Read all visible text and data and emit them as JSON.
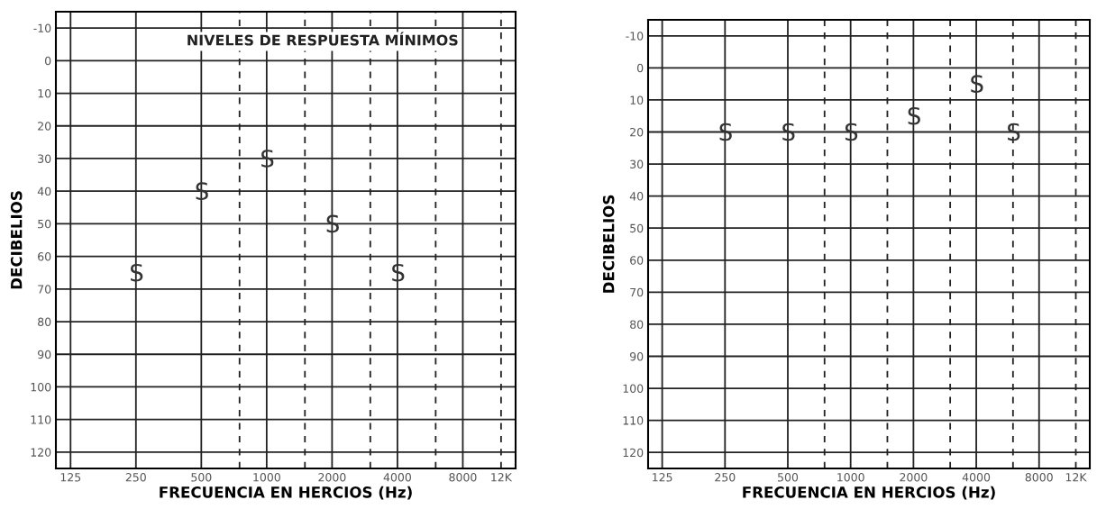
{
  "chart_data": [
    {
      "type": "scatter",
      "title": "NIVELES DE RESPUESTA MÍNIMOS",
      "xlabel": "FRECUENCIA EN HERCIOS (Hz)",
      "ylabel": "DECIBELIOS",
      "log": "x",
      "marker": "S",
      "grid": true,
      "x": [
        250,
        500,
        1000,
        2000,
        4000
      ],
      "series": [
        {
          "color": "#333333",
          "values": [
            65,
            40,
            30,
            50,
            65
          ]
        }
      ],
      "xlim": [
        107,
        14000
      ],
      "xticks": [
        125,
        250,
        500,
        1000,
        2000,
        4000,
        8000,
        {
          "value": 12000,
          "label": "12K"
        }
      ],
      "ylim": [
        125,
        -15
      ],
      "yticks": [
        -10,
        0,
        10,
        20,
        30,
        40,
        50,
        60,
        70,
        80,
        90,
        100,
        110,
        120
      ],
      "ref_lines": [
        {
          "axis": "x",
          "value": 750,
          "line_style": "dashed",
          "color": "#222222"
        },
        {
          "axis": "x",
          "value": 1500,
          "line_style": "dashed",
          "color": "#222222"
        },
        {
          "axis": "x",
          "value": 3000,
          "line_style": "dashed",
          "color": "#222222"
        },
        {
          "axis": "x",
          "value": 6000,
          "line_style": "dashed",
          "color": "#222222"
        },
        {
          "axis": "x",
          "value": 12000,
          "line_style": "dashed",
          "color": "#222222"
        }
      ]
    },
    {
      "type": "scatter",
      "xlabel": "FRECUENCIA EN HERCIOS (Hz)",
      "ylabel": "DECIBELIOS",
      "log": "x",
      "marker": "S",
      "grid": true,
      "x": [
        250,
        500,
        1000,
        2000,
        4000,
        6000
      ],
      "series": [
        {
          "color": "#333333",
          "values": [
            20,
            20,
            20,
            15,
            5,
            20
          ]
        }
      ],
      "xlim": [
        107,
        14000
      ],
      "xticks": [
        125,
        250,
        500,
        1000,
        2000,
        4000,
        8000,
        {
          "value": 12000,
          "label": "12K"
        }
      ],
      "ylim": [
        125,
        -15
      ],
      "yticks": [
        -10,
        0,
        10,
        20,
        30,
        40,
        50,
        60,
        70,
        80,
        90,
        100,
        110,
        120
      ],
      "ref_lines": [
        {
          "axis": "x",
          "value": 750,
          "line_style": "dashed",
          "color": "#222222"
        },
        {
          "axis": "x",
          "value": 1500,
          "line_style": "dashed",
          "color": "#222222"
        },
        {
          "axis": "x",
          "value": 3000,
          "line_style": "dashed",
          "color": "#222222"
        },
        {
          "axis": "x",
          "value": 6000,
          "line_style": "dashed",
          "color": "#222222"
        },
        {
          "axis": "x",
          "value": 12000,
          "line_style": "dashed",
          "color": "#222222"
        }
      ]
    }
  ]
}
